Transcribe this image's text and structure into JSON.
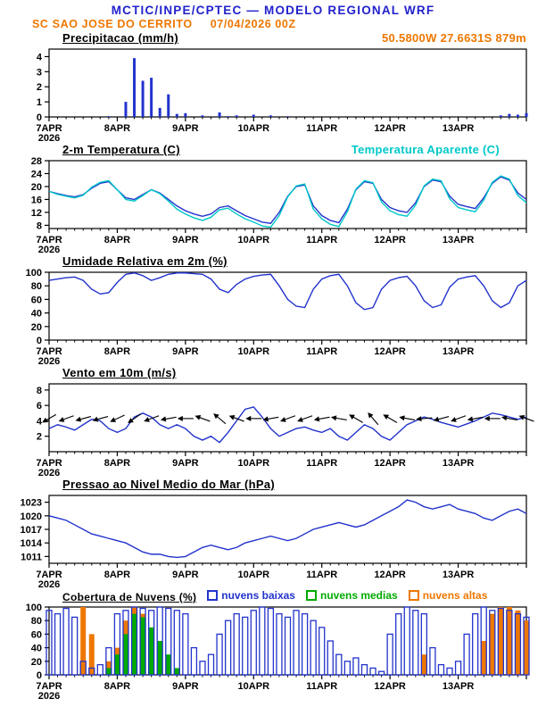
{
  "header": {
    "title": "MCTIC/INPE/CPTEC — MODELO REGIONAL WRF",
    "station": "SC SAO JOSE DO CERRITO",
    "run": "07/04/2026 00Z",
    "location": "50.5800W 27.6631S 879m",
    "title_color": "#2222cc",
    "subtitle_color": "#ee7700"
  },
  "x_axis": {
    "tick_labels": [
      "7APR",
      "8APR",
      "9APR",
      "10APR",
      "11APR",
      "12APR",
      "13APR"
    ],
    "year_label": "2026",
    "hours_step": 3,
    "n_points": 57
  },
  "chart_data": [
    {
      "type": "bar",
      "title": "Precipitacao (mm/h)",
      "ylim": [
        0,
        4.5
      ],
      "yticks": [
        0,
        1,
        2,
        3,
        4
      ],
      "color": "#2233cc",
      "values": [
        0,
        0,
        0,
        0,
        0,
        0,
        0,
        0.05,
        0,
        1.0,
        3.9,
        2.4,
        2.6,
        0.6,
        1.5,
        0.2,
        0.25,
        0,
        0.1,
        0,
        0.3,
        0.05,
        0.1,
        0,
        0.15,
        0,
        0.1,
        0,
        0.05,
        0,
        0,
        0,
        0,
        0,
        0,
        0,
        0,
        0,
        0,
        0,
        0,
        0,
        0,
        0,
        0,
        0,
        0,
        0,
        0,
        0,
        0,
        0,
        0,
        0.1,
        0.2,
        0.15,
        0.25
      ]
    },
    {
      "type": "line",
      "title": "2-m Temperatura (C)",
      "right_label": "Temperatura Aparente (C)",
      "ylim": [
        7,
        28
      ],
      "yticks": [
        8,
        12,
        16,
        20,
        24,
        28
      ],
      "series": [
        {
          "name": "2-m Temperatura (C)",
          "color": "#2233cc",
          "values": [
            18.5,
            17.8,
            17.2,
            16.8,
            17.5,
            19.5,
            21.0,
            21.5,
            19.0,
            16.5,
            16.0,
            17.5,
            19.0,
            18.0,
            16.0,
            14.0,
            12.5,
            11.5,
            10.8,
            11.5,
            13.5,
            14.0,
            12.5,
            11.0,
            10.0,
            9.0,
            8.6,
            12.0,
            17.0,
            20.0,
            20.5,
            14.0,
            11.0,
            9.5,
            8.8,
            13.0,
            19.0,
            21.5,
            21.0,
            16.0,
            13.5,
            12.5,
            12.0,
            15.0,
            20.0,
            22.0,
            21.5,
            17.0,
            14.5,
            13.8,
            13.2,
            16.5,
            21.0,
            23.0,
            22.0,
            18.0,
            16.0
          ]
        },
        {
          "name": "Temperatura Aparente (C)",
          "color": "#00c8c8",
          "values": [
            18.5,
            17.6,
            17.0,
            16.5,
            17.3,
            19.8,
            21.3,
            21.8,
            19.0,
            16.0,
            15.5,
            17.2,
            19.0,
            17.8,
            15.5,
            13.0,
            11.5,
            10.3,
            9.5,
            10.5,
            12.8,
            13.3,
            11.5,
            10.0,
            9.0,
            7.8,
            7.4,
            11.0,
            16.8,
            20.2,
            20.8,
            13.0,
            10.0,
            8.3,
            7.6,
            12.2,
            19.2,
            21.8,
            21.2,
            15.2,
            12.5,
            11.3,
            10.8,
            14.2,
            20.2,
            22.3,
            21.8,
            16.2,
            13.5,
            12.8,
            12.2,
            15.8,
            21.3,
            23.3,
            22.3,
            17.2,
            15.0
          ]
        }
      ]
    },
    {
      "type": "line",
      "title": "Umidade Relativa em 2m (%)",
      "ylim": [
        0,
        100
      ],
      "yticks": [
        0,
        20,
        40,
        60,
        80,
        100
      ],
      "series": [
        {
          "name": "Umidade Relativa em 2m",
          "color": "#2233cc",
          "values": [
            88,
            90,
            92,
            93,
            88,
            75,
            68,
            70,
            85,
            97,
            99,
            95,
            88,
            92,
            97,
            99,
            99,
            98,
            97,
            90,
            75,
            70,
            82,
            90,
            94,
            96,
            97,
            80,
            60,
            50,
            48,
            75,
            90,
            95,
            97,
            80,
            55,
            45,
            48,
            75,
            88,
            92,
            94,
            80,
            58,
            48,
            52,
            78,
            90,
            93,
            95,
            80,
            58,
            48,
            55,
            80,
            88
          ]
        }
      ]
    },
    {
      "type": "wind",
      "title": "Vento em 10m (m/s)",
      "ylim": [
        0,
        8.8
      ],
      "yticks": [
        2,
        4,
        6,
        8
      ],
      "color": "#2233cc",
      "barb_color": "#000000",
      "barb_anchor": 4.3,
      "speed": [
        3.0,
        3.5,
        3.2,
        2.8,
        3.5,
        4.2,
        4.0,
        3.0,
        2.5,
        3.0,
        4.5,
        5.0,
        4.5,
        3.5,
        3.0,
        3.5,
        3.0,
        2.0,
        1.5,
        2.0,
        1.2,
        2.5,
        4.0,
        5.5,
        5.8,
        4.5,
        3.0,
        2.0,
        2.5,
        3.0,
        3.2,
        2.8,
        2.5,
        3.0,
        2.0,
        1.5,
        2.5,
        3.5,
        3.0,
        2.0,
        1.5,
        2.5,
        3.5,
        4.0,
        4.5,
        4.2,
        3.8,
        3.5,
        3.2,
        3.6,
        4.0,
        4.5,
        5.0,
        4.8,
        4.5,
        4.2,
        4.5
      ],
      "dir_toward_deg": [
        240,
        245,
        250,
        250,
        255,
        260,
        255,
        250,
        245,
        240,
        235,
        240,
        250,
        255,
        260,
        265,
        270,
        280,
        290,
        300,
        310,
        300,
        290,
        280,
        270,
        265,
        260,
        255,
        250,
        245,
        250,
        255,
        260,
        270,
        280,
        290,
        300,
        310,
        320,
        310,
        300,
        290,
        280,
        270,
        265,
        260,
        255,
        250,
        250,
        255,
        260,
        265,
        270,
        275,
        280,
        285,
        290
      ]
    },
    {
      "type": "line",
      "title": "Pressao ao Nivel Medio do Mar (hPa)",
      "ylim": [
        1009.5,
        1024.5
      ],
      "yticks": [
        1011,
        1014,
        1017,
        1020,
        1023
      ],
      "series": [
        {
          "name": "Pressao ao Nivel Medio do Mar",
          "color": "#2233cc",
          "values": [
            1020,
            1019.5,
            1019,
            1018,
            1017,
            1016,
            1015.5,
            1015,
            1014.5,
            1014,
            1013,
            1012,
            1011.5,
            1011.5,
            1011,
            1010.8,
            1011,
            1012,
            1013,
            1013.5,
            1013,
            1012.5,
            1013,
            1014,
            1014.5,
            1015,
            1015.5,
            1015,
            1014.5,
            1015,
            1016,
            1017,
            1017.5,
            1018,
            1018.5,
            1018,
            1017.5,
            1018,
            1019,
            1020,
            1021,
            1022,
            1023.5,
            1023,
            1022,
            1021.5,
            1022,
            1022.5,
            1021.5,
            1021,
            1020.5,
            1019.5,
            1019,
            1020,
            1021,
            1021.5,
            1020.5
          ]
        }
      ]
    },
    {
      "type": "cloud",
      "title": "Cobertura de Nuvens (%)",
      "ylim": [
        0,
        100
      ],
      "yticks": [
        0,
        20,
        40,
        60,
        80,
        100
      ],
      "series": [
        {
          "name": "nuvens baixas",
          "color": "#2233cc",
          "values": [
            95,
            90,
            98,
            85,
            20,
            10,
            15,
            40,
            90,
            95,
            100,
            98,
            95,
            100,
            98,
            95,
            90,
            40,
            20,
            30,
            60,
            80,
            90,
            85,
            95,
            100,
            98,
            90,
            85,
            95,
            90,
            80,
            70,
            50,
            30,
            20,
            25,
            15,
            10,
            5,
            60,
            90,
            100,
            95,
            90,
            40,
            15,
            10,
            20,
            60,
            90,
            100,
            95,
            98,
            95,
            90,
            85
          ]
        },
        {
          "name": "nuvens medias",
          "color": "#00aa00",
          "values": [
            0,
            0,
            0,
            0,
            0,
            0,
            0,
            10,
            30,
            60,
            90,
            85,
            70,
            50,
            30,
            10,
            0,
            0,
            0,
            0,
            0,
            0,
            0,
            0,
            0,
            0,
            0,
            0,
            0,
            0,
            0,
            0,
            0,
            0,
            0,
            0,
            0,
            0,
            0,
            0,
            0,
            0,
            0,
            0,
            0,
            0,
            0,
            0,
            0,
            0,
            0,
            0,
            0,
            0,
            0,
            0,
            0
          ]
        },
        {
          "name": "nuvens altas",
          "color": "#ee7700",
          "values": [
            0,
            0,
            0,
            0,
            100,
            60,
            0,
            20,
            40,
            80,
            100,
            90,
            60,
            20,
            0,
            0,
            0,
            0,
            0,
            0,
            0,
            0,
            0,
            0,
            0,
            0,
            0,
            0,
            0,
            0,
            0,
            0,
            0,
            0,
            0,
            0,
            0,
            0,
            0,
            0,
            0,
            0,
            0,
            0,
            30,
            0,
            0,
            0,
            0,
            0,
            0,
            50,
            90,
            100,
            100,
            95,
            80
          ]
        }
      ]
    }
  ]
}
